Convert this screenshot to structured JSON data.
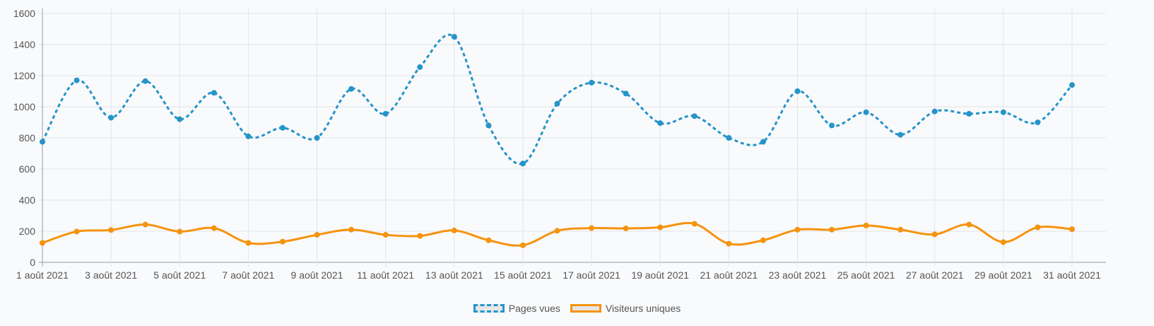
{
  "chart_data": {
    "type": "line",
    "x": [
      "1 août 2021",
      "2 août 2021",
      "3 août 2021",
      "4 août 2021",
      "5 août 2021",
      "6 août 2021",
      "7 août 2021",
      "8 août 2021",
      "9 août 2021",
      "10 août 2021",
      "11 août 2021",
      "12 août 2021",
      "13 août 2021",
      "14 août 2021",
      "15 août 2021",
      "16 août 2021",
      "17 août 2021",
      "18 août 2021",
      "19 août 2021",
      "20 août 2021",
      "21 août 2021",
      "22 août 2021",
      "23 août 2021",
      "24 août 2021",
      "25 août 2021",
      "26 août 2021",
      "27 août 2021",
      "28 août 2021",
      "29 août 2021",
      "30 août 2021",
      "31 août 2021"
    ],
    "x_tick_labels": [
      "1 août 2021",
      "3 août 2021",
      "5 août 2021",
      "7 août 2021",
      "9 août 2021",
      "11 août 2021",
      "13 août 2021",
      "15 août 2021",
      "17 août 2021",
      "19 août 2021",
      "21 août 2021",
      "23 août 2021",
      "25 août 2021",
      "27 août 2021",
      "29 août 2021",
      "31 août 2021"
    ],
    "y_ticks": [
      0,
      200,
      400,
      600,
      800,
      1000,
      1200,
      1400,
      1600
    ],
    "ylim": [
      0,
      1600
    ],
    "grid": true,
    "legend_position": "bottom",
    "series": [
      {
        "name": "Pages vues",
        "color": "#2594c9",
        "style": "dashed",
        "values": [
          775,
          1170,
          930,
          1165,
          920,
          1090,
          810,
          865,
          800,
          1115,
          955,
          1255,
          1450,
          880,
          635,
          1020,
          1155,
          1085,
          895,
          940,
          800,
          775,
          1100,
          880,
          965,
          820,
          970,
          955,
          965,
          900,
          1140
        ]
      },
      {
        "name": "Visiteurs uniques",
        "color": "#f6930f",
        "style": "solid",
        "values": [
          125,
          198,
          208,
          243,
          198,
          220,
          125,
          133,
          177,
          210,
          177,
          170,
          205,
          142,
          110,
          203,
          220,
          218,
          225,
          248,
          120,
          142,
          210,
          210,
          237,
          210,
          180,
          243,
          130,
          225,
          213
        ]
      }
    ]
  }
}
